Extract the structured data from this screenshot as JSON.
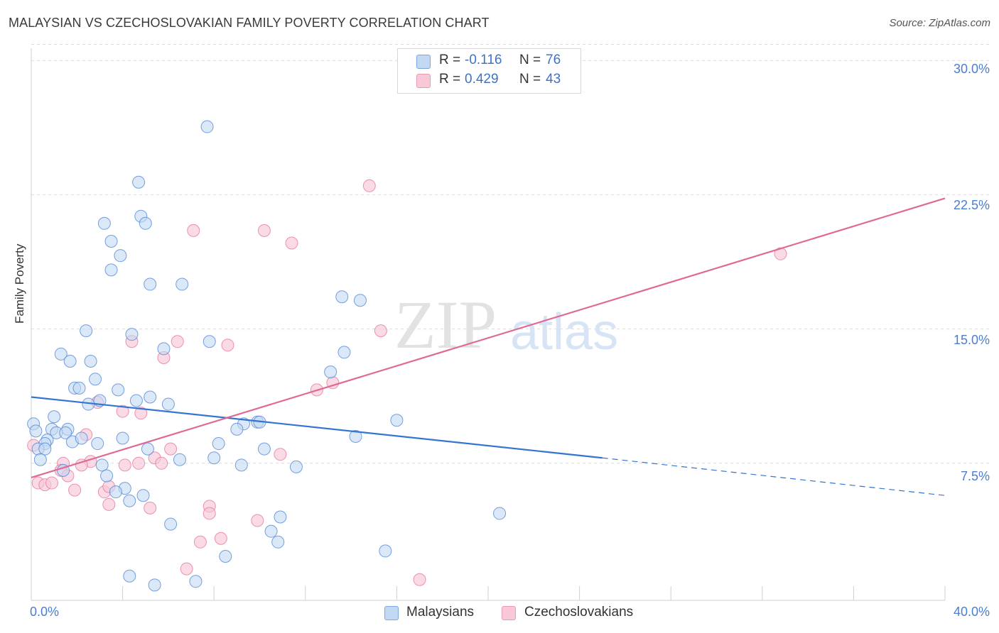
{
  "header": {
    "title": "MALAYSIAN VS CZECHOSLOVAKIAN FAMILY POVERTY CORRELATION CHART",
    "source": "Source: ZipAtlas.com"
  },
  "colors": {
    "blue": "#4a82d6",
    "blue_fill": "#c3d8f3",
    "pink": "#e47197",
    "pink_fill": "#f8c8d7"
  },
  "legend": {
    "r_label": "R =",
    "n_label": "N =",
    "series": [
      {
        "name": "Malaysians",
        "r": "-0.116",
        "n": "76"
      },
      {
        "name": "Czechoslovakians",
        "r": "0.429",
        "n": "43"
      }
    ]
  },
  "watermark": {
    "zip": "ZIP",
    "atlas": "atlas"
  },
  "chart_data": {
    "type": "scatter",
    "title": "MALAYSIAN VS CZECHOSLOVAKIAN FAMILY POVERTY CORRELATION CHART",
    "xlabel": "",
    "ylabel": "Family Poverty",
    "xlim": [
      0,
      40
    ],
    "ylim": [
      0,
      31
    ],
    "x_tick_labels": [
      "0.0%",
      "40.0%"
    ],
    "y_ticks": [
      7.5,
      15.0,
      22.5,
      30.0
    ],
    "y_tick_labels": [
      "7.5%",
      "15.0%",
      "22.5%",
      "30.0%"
    ],
    "grid": true,
    "series": [
      {
        "name": "Malaysians",
        "trend": {
          "x0": 0,
          "y0": 11.2,
          "x1": 25,
          "y1": 7.8,
          "dash_to_x": 40,
          "dash_to_y": 5.7
        },
        "points": [
          [
            7.7,
            26.3
          ],
          [
            4.7,
            23.2
          ],
          [
            4.8,
            21.3
          ],
          [
            3.2,
            20.9
          ],
          [
            5.0,
            20.9
          ],
          [
            3.5,
            19.9
          ],
          [
            3.9,
            19.1
          ],
          [
            3.5,
            18.3
          ],
          [
            5.2,
            17.5
          ],
          [
            6.6,
            17.5
          ],
          [
            13.6,
            16.8
          ],
          [
            14.4,
            16.6
          ],
          [
            2.4,
            14.9
          ],
          [
            4.4,
            14.7
          ],
          [
            7.8,
            14.3
          ],
          [
            5.8,
            13.9
          ],
          [
            1.3,
            13.6
          ],
          [
            13.7,
            13.7
          ],
          [
            1.7,
            13.2
          ],
          [
            2.6,
            13.2
          ],
          [
            13.1,
            12.6
          ],
          [
            2.8,
            12.2
          ],
          [
            1.9,
            11.7
          ],
          [
            2.1,
            11.7
          ],
          [
            3.8,
            11.6
          ],
          [
            3.0,
            11.0
          ],
          [
            5.2,
            11.2
          ],
          [
            2.5,
            10.8
          ],
          [
            6.0,
            10.8
          ],
          [
            1.0,
            10.1
          ],
          [
            0.1,
            9.7
          ],
          [
            9.3,
            9.7
          ],
          [
            9.9,
            9.8
          ],
          [
            10.0,
            9.8
          ],
          [
            16.0,
            9.9
          ],
          [
            0.9,
            9.4
          ],
          [
            1.6,
            9.4
          ],
          [
            1.1,
            9.2
          ],
          [
            9.0,
            9.4
          ],
          [
            1.5,
            9.2
          ],
          [
            4.0,
            8.9
          ],
          [
            14.2,
            9.0
          ],
          [
            0.7,
            8.8
          ],
          [
            0.6,
            8.6
          ],
          [
            1.8,
            8.7
          ],
          [
            2.2,
            8.9
          ],
          [
            2.9,
            8.6
          ],
          [
            8.2,
            8.6
          ],
          [
            0.3,
            8.3
          ],
          [
            0.6,
            8.3
          ],
          [
            5.1,
            8.3
          ],
          [
            10.2,
            8.3
          ],
          [
            0.4,
            7.7
          ],
          [
            6.5,
            7.7
          ],
          [
            8.0,
            7.8
          ],
          [
            3.1,
            7.4
          ],
          [
            9.2,
            7.4
          ],
          [
            11.6,
            7.3
          ],
          [
            1.4,
            7.1
          ],
          [
            3.3,
            6.8
          ],
          [
            4.1,
            6.1
          ],
          [
            3.7,
            5.9
          ],
          [
            4.9,
            5.7
          ],
          [
            4.3,
            5.4
          ],
          [
            20.5,
            4.7
          ],
          [
            10.9,
            4.5
          ],
          [
            6.1,
            4.1
          ],
          [
            10.5,
            3.7
          ],
          [
            10.8,
            3.1
          ],
          [
            15.5,
            2.6
          ],
          [
            8.5,
            2.3
          ],
          [
            4.3,
            1.2
          ],
          [
            5.4,
            0.7
          ],
          [
            7.2,
            0.9
          ],
          [
            4.6,
            11.0
          ],
          [
            0.2,
            9.3
          ]
        ]
      },
      {
        "name": "Czechoslovakians",
        "trend": {
          "x0": 0,
          "y0": 6.7,
          "x1": 40,
          "y1": 22.3
        },
        "points": [
          [
            14.8,
            23.0
          ],
          [
            7.1,
            20.5
          ],
          [
            10.2,
            20.5
          ],
          [
            11.4,
            19.8
          ],
          [
            32.8,
            19.2
          ],
          [
            15.3,
            14.9
          ],
          [
            4.4,
            14.3
          ],
          [
            6.4,
            14.3
          ],
          [
            8.6,
            14.1
          ],
          [
            5.8,
            13.4
          ],
          [
            13.2,
            12.0
          ],
          [
            12.5,
            11.6
          ],
          [
            2.9,
            10.9
          ],
          [
            4.0,
            10.4
          ],
          [
            4.8,
            10.3
          ],
          [
            2.4,
            9.1
          ],
          [
            6.1,
            8.3
          ],
          [
            10.9,
            8.0
          ],
          [
            5.4,
            7.8
          ],
          [
            2.6,
            7.6
          ],
          [
            2.2,
            7.4
          ],
          [
            4.1,
            7.4
          ],
          [
            4.7,
            7.5
          ],
          [
            5.7,
            7.5
          ],
          [
            1.4,
            7.5
          ],
          [
            1.3,
            7.1
          ],
          [
            1.6,
            6.8
          ],
          [
            0.3,
            6.4
          ],
          [
            0.6,
            6.3
          ],
          [
            0.9,
            6.4
          ],
          [
            1.9,
            6.0
          ],
          [
            3.2,
            5.9
          ],
          [
            3.4,
            6.2
          ],
          [
            3.4,
            5.2
          ],
          [
            5.2,
            5.0
          ],
          [
            7.8,
            5.1
          ],
          [
            7.8,
            4.7
          ],
          [
            9.9,
            4.3
          ],
          [
            8.3,
            3.3
          ],
          [
            7.4,
            3.1
          ],
          [
            6.8,
            1.6
          ],
          [
            17.0,
            1.0
          ],
          [
            0.1,
            8.5
          ]
        ]
      }
    ]
  }
}
